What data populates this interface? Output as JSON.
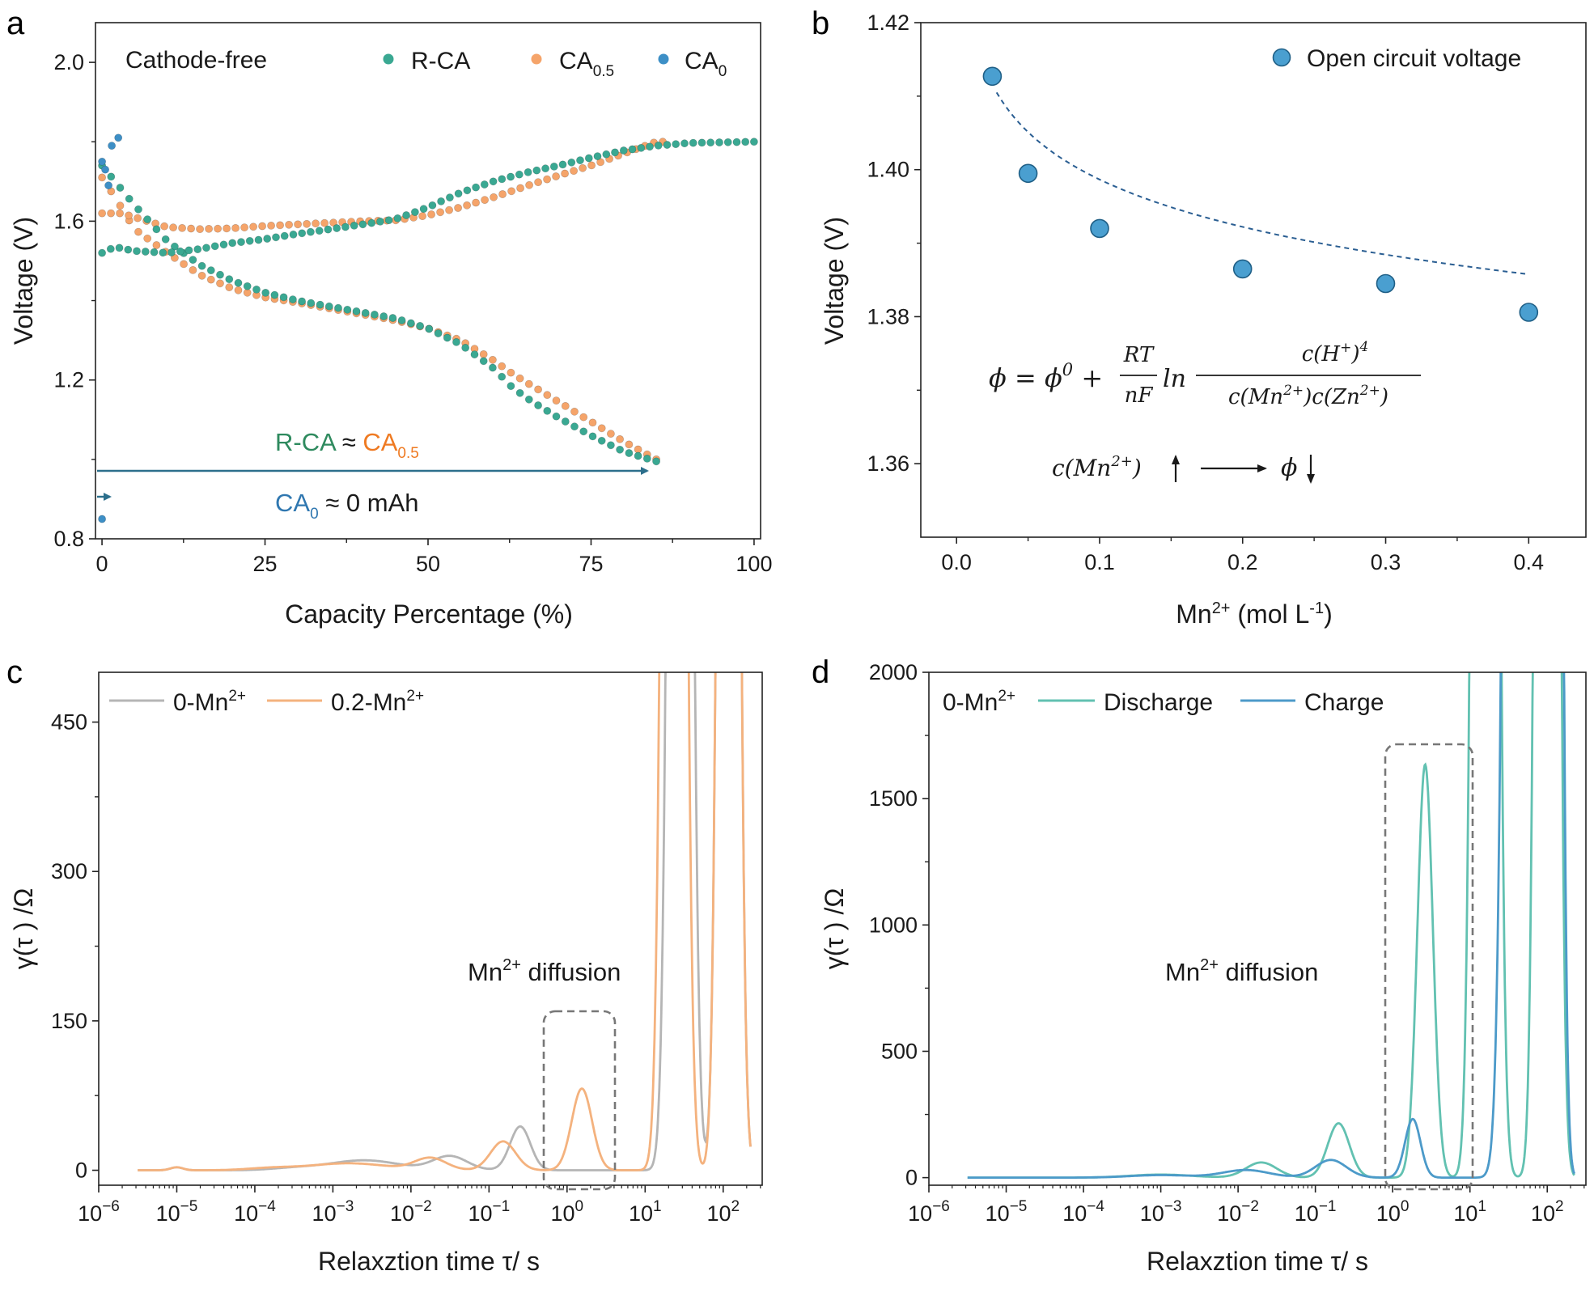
{
  "colors": {
    "rca": "#3aa892",
    "ca05": "#f5a46a",
    "ca0": "#3d8fc6",
    "ocv": "#4a9fd0",
    "gray": "#b5b5b5",
    "orange": "#f4b27e",
    "discharge": "#62c1b1",
    "charge": "#4c9ac9",
    "text_green": "#2e8a5e",
    "text_orange": "#ef7a22",
    "text_blue": "#2f77b0",
    "arrow": "#2c6f8c",
    "dash": "#777777",
    "fit": "#2a5e92"
  },
  "panel_a": {
    "label": "a",
    "xlabel": "Capacity Percentage (%)",
    "ylabel": "Voltage (V)",
    "note": "Cathode-free",
    "anno_line1_a": "R-CA",
    "anno_approx": "≈",
    "anno_line1_b": "CA",
    "anno_line1_b_sub": "0.5",
    "anno_line2_a": "CA",
    "anno_line2_a_sub": "0",
    "anno_line2_b": "≈ 0 mAh",
    "legend": [
      {
        "name": "R-CA",
        "sub": ""
      },
      {
        "name": "CA",
        "sub": "0.5"
      },
      {
        "name": "CA",
        "sub": "0"
      }
    ]
  },
  "panel_b": {
    "label": "b",
    "xlabel_main": "Mn",
    "xlabel_sup": "2+",
    "xlabel_rest": " (mol L",
    "xlabel_sup2": "-1",
    "xlabel_end": ")",
    "ylabel": "Voltage (V)",
    "legend": "Open circuit voltage",
    "eq_lhs": "ϕ = ϕ",
    "eq_sup0": "0",
    "eq_plus": "+",
    "eq_frac_num": "RT",
    "eq_frac_den": "nF",
    "eq_ln": "ln",
    "eq_num": "c(H",
    "eq_num_sup": "+",
    "eq_num_end": ")",
    "eq_num_pow": "4",
    "eq_den": "c(Mn",
    "eq_den_sup": "2+",
    "eq_den_mid": ")c(Zn",
    "eq_den_sup2": "2+",
    "eq_den_end": ")",
    "trend_lhs": "c(Mn",
    "trend_sup": "2+",
    "trend_end": ")",
    "trend_phi": "ϕ"
  },
  "panel_c": {
    "label": "c",
    "xlabel": "Relaxztion time τ/ s",
    "ylabel": "γ(τ ) /Ω",
    "legend": [
      {
        "main": "0-Mn",
        "sup": "2+"
      },
      {
        "main": "0.2-Mn",
        "sup": "2+"
      }
    ],
    "anno_main": "Mn",
    "anno_sup": "2+",
    "anno_rest": " diffusion"
  },
  "panel_d": {
    "label": "d",
    "xlabel": "Relaxztion time τ/ s",
    "ylabel": "γ(τ ) /Ω",
    "legend_prefix_main": "0-Mn",
    "legend_prefix_sup": "2+",
    "legend": [
      "Discharge",
      "Charge"
    ],
    "anno_main": "Mn",
    "anno_sup": "2+",
    "anno_rest": " diffusion"
  },
  "chart_data": [
    {
      "id": "a",
      "type": "scatter",
      "xlim": [
        -1,
        101
      ],
      "ylim": [
        0.8,
        2.1
      ],
      "xticks": [
        0,
        25,
        50,
        75,
        100
      ],
      "yticks": [
        0.8,
        1.2,
        1.6,
        2.0
      ],
      "yticklabels": [
        "0.8",
        "1.2",
        "1.6",
        "2.0"
      ],
      "series": [
        {
          "name": "R-CA discharge",
          "color": "rca",
          "x_start": 0,
          "x_end": 85,
          "n": 62,
          "curve": [
            [
              0,
              1.74
            ],
            [
              2,
              1.7
            ],
            [
              5,
              1.64
            ],
            [
              10,
              1.55
            ],
            [
              15,
              1.49
            ],
            [
              20,
              1.45
            ],
            [
              25,
              1.42
            ],
            [
              30,
              1.4
            ],
            [
              35,
              1.385
            ],
            [
              40,
              1.37
            ],
            [
              45,
              1.355
            ],
            [
              50,
              1.33
            ],
            [
              55,
              1.29
            ],
            [
              60,
              1.23
            ],
            [
              63,
              1.18
            ],
            [
              66,
              1.145
            ],
            [
              70,
              1.105
            ],
            [
              75,
              1.06
            ],
            [
              80,
              1.02
            ],
            [
              85,
              0.995
            ]
          ]
        },
        {
          "name": "R-CA charge",
          "color": "rca",
          "x_start": 0,
          "x_end": 100,
          "n": 76,
          "curve": [
            [
              0,
              1.52
            ],
            [
              2,
              1.535
            ],
            [
              5,
              1.525
            ],
            [
              10,
              1.52
            ],
            [
              15,
              1.53
            ],
            [
              20,
              1.545
            ],
            [
              25,
              1.555
            ],
            [
              30,
              1.568
            ],
            [
              35,
              1.58
            ],
            [
              40,
              1.592
            ],
            [
              45,
              1.605
            ],
            [
              50,
              1.635
            ],
            [
              55,
              1.672
            ],
            [
              60,
              1.7
            ],
            [
              65,
              1.722
            ],
            [
              70,
              1.74
            ],
            [
              75,
              1.76
            ],
            [
              80,
              1.778
            ],
            [
              85,
              1.79
            ],
            [
              90,
              1.797
            ],
            [
              100,
              1.8
            ]
          ]
        },
        {
          "name": "CA0.5 discharge",
          "color": "ca05",
          "x_start": 0,
          "x_end": 85,
          "n": 62,
          "curve": [
            [
              0,
              1.71
            ],
            [
              2,
              1.66
            ],
            [
              5,
              1.58
            ],
            [
              10,
              1.52
            ],
            [
              15,
              1.465
            ],
            [
              20,
              1.43
            ],
            [
              25,
              1.408
            ],
            [
              30,
              1.395
            ],
            [
              35,
              1.38
            ],
            [
              40,
              1.365
            ],
            [
              45,
              1.35
            ],
            [
              50,
              1.33
            ],
            [
              55,
              1.3
            ],
            [
              60,
              1.25
            ],
            [
              63,
              1.215
            ],
            [
              66,
              1.185
            ],
            [
              70,
              1.145
            ],
            [
              75,
              1.095
            ],
            [
              80,
              1.045
            ],
            [
              85,
              1.0
            ]
          ]
        },
        {
          "name": "CA0.5 charge",
          "color": "ca05",
          "x_start": 0,
          "x_end": 86,
          "n": 64,
          "curve": [
            [
              0,
              1.62
            ],
            [
              3,
              1.62
            ],
            [
              6,
              1.605
            ],
            [
              10,
              1.585
            ],
            [
              15,
              1.58
            ],
            [
              20,
              1.582
            ],
            [
              25,
              1.588
            ],
            [
              30,
              1.592
            ],
            [
              35,
              1.596
            ],
            [
              40,
              1.6
            ],
            [
              45,
              1.602
            ],
            [
              50,
              1.615
            ],
            [
              55,
              1.635
            ],
            [
              60,
              1.66
            ],
            [
              65,
              1.688
            ],
            [
              70,
              1.715
            ],
            [
              75,
              1.74
            ],
            [
              80,
              1.77
            ],
            [
              85,
              1.8
            ]
          ]
        },
        {
          "name": "CA0",
          "color": "ca0",
          "points": [
            [
              0,
              0.85
            ],
            [
              0,
              1.75
            ],
            [
              0.5,
              1.73
            ],
            [
              1,
              1.69
            ],
            [
              1.5,
              1.79
            ],
            [
              2.5,
              1.81
            ]
          ]
        }
      ]
    },
    {
      "id": "b",
      "type": "scatter",
      "xlim": [
        -0.025,
        0.44
      ],
      "ylim": [
        1.35,
        1.42
      ],
      "xticks": [
        0.0,
        0.1,
        0.2,
        0.3,
        0.4
      ],
      "xticklabels": [
        "0.0",
        "0.1",
        "0.2",
        "0.3",
        "0.4"
      ],
      "yticks": [
        1.36,
        1.38,
        1.4,
        1.42
      ],
      "yticklabels": [
        "1.36",
        "1.38",
        "1.40",
        "1.42"
      ],
      "points": [
        [
          0.025,
          1.4127
        ],
        [
          0.05,
          1.3995
        ],
        [
          0.1,
          1.392
        ],
        [
          0.2,
          1.3865
        ],
        [
          0.3,
          1.3845
        ],
        [
          0.4,
          1.3806
        ]
      ],
      "fit": {
        "type": "log",
        "a": 1.4105,
        "b": 0.0093,
        "x_from": 0.028,
        "x_to": 0.4
      }
    },
    {
      "id": "c",
      "type": "line",
      "xscale": "log",
      "xlim_exp": [
        -6,
        2.5
      ],
      "ylim": [
        -15,
        500
      ],
      "xticks_exp": [
        -6,
        -5,
        -4,
        -3,
        -2,
        -1,
        0,
        1,
        2
      ],
      "yticks": [
        0,
        150,
        300,
        450
      ],
      "x_range_exp": [
        -5.5,
        2.35
      ],
      "series": [
        {
          "name": "0-Mn2+",
          "color": "gray",
          "peaks": [
            [
              -5.0,
              3,
              0.08
            ],
            [
              -3.5,
              2,
              0.3
            ],
            [
              -2.6,
              10,
              0.45
            ],
            [
              -1.5,
              14,
              0.22
            ],
            [
              -0.6,
              44,
              0.13
            ],
            [
              1.45,
              3000,
              0.1
            ],
            [
              2.07,
              3000,
              0.09
            ]
          ]
        },
        {
          "name": "0.2-Mn2+",
          "color": "orange",
          "peaks": [
            [
              -5.0,
              3,
              0.08
            ],
            [
              -3.8,
              2,
              0.3
            ],
            [
              -2.8,
              7,
              0.5
            ],
            [
              -1.75,
              12,
              0.2
            ],
            [
              -0.82,
              29,
              0.16
            ],
            [
              0.19,
              82,
              0.13
            ],
            [
              1.37,
              3000,
              0.1
            ],
            [
              2.07,
              3000,
              0.09
            ]
          ]
        }
      ]
    },
    {
      "id": "d",
      "type": "line",
      "xscale": "log",
      "xlim_exp": [
        -6,
        2.5
      ],
      "ylim": [
        -30,
        2000
      ],
      "xticks_exp": [
        -6,
        -5,
        -4,
        -3,
        -2,
        -1,
        0,
        1,
        2
      ],
      "yticks": [
        0,
        500,
        1000,
        1500,
        2000
      ],
      "x_range_exp": [
        -5.5,
        2.35
      ],
      "series": [
        {
          "name": "Discharge",
          "color": "discharge",
          "peaks": [
            [
              -3.0,
              12,
              0.4
            ],
            [
              -1.7,
              60,
              0.2
            ],
            [
              -0.7,
              215,
              0.14
            ],
            [
              0.42,
              1635,
              0.1
            ],
            [
              1.2,
              18000,
              0.1
            ],
            [
              2.0,
              18000,
              0.09
            ]
          ]
        },
        {
          "name": "Charge",
          "color": "charge",
          "peaks": [
            [
              -3.0,
              10,
              0.4
            ],
            [
              -1.9,
              30,
              0.3
            ],
            [
              -0.8,
              70,
              0.2
            ],
            [
              0.26,
              232,
              0.1
            ],
            [
              1.65,
              18000,
              0.12
            ],
            [
              2.05,
              18000,
              0.08
            ]
          ]
        }
      ]
    }
  ]
}
